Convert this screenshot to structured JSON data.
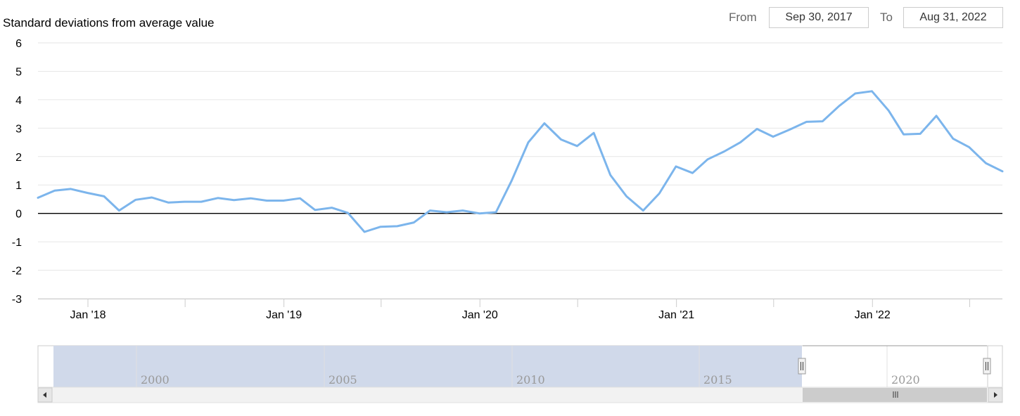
{
  "range_selector": {
    "from_label": "From",
    "from_value": "Sep 30, 2017",
    "to_label": "To",
    "to_value": "Aug 31, 2022"
  },
  "navigator": {
    "labels": [
      "2000",
      "2005",
      "2010",
      "2015",
      "2020"
    ]
  },
  "colors": {
    "series": "#7cb5ec",
    "navigator_fill": "#d0d9ea",
    "zero_line": "#000000",
    "grid": "#e6e6e6"
  },
  "chart_data": {
    "type": "line",
    "title": "",
    "ylabel": "Standard deviations from average value",
    "ylim": [
      -3,
      6
    ],
    "yticks": [
      6,
      5,
      4,
      3,
      2,
      1,
      0,
      -1,
      -2,
      -3
    ],
    "xlim": [
      "2017-09-30",
      "2022-08-31"
    ],
    "x_tick_labels": [
      {
        "date": "2018-01-01",
        "label": "Jan '18"
      },
      {
        "date": "2019-01-01",
        "label": "Jan '19"
      },
      {
        "date": "2020-01-01",
        "label": "Jan '20"
      },
      {
        "date": "2021-01-01",
        "label": "Jan '21"
      },
      {
        "date": "2022-01-01",
        "label": "Jan '22"
      }
    ],
    "x_minor_ticks": [
      "2018-07-01",
      "2019-07-01",
      "2020-07-01",
      "2021-07-01",
      "2022-07-01"
    ],
    "grid": true,
    "series": [
      {
        "x": [
          "2017-09-30",
          "2017-10-31",
          "2017-11-30",
          "2017-12-31",
          "2018-01-31",
          "2018-02-28",
          "2018-03-31",
          "2018-04-30",
          "2018-05-31",
          "2018-06-30",
          "2018-07-31",
          "2018-08-31",
          "2018-09-30",
          "2018-10-31",
          "2018-11-30",
          "2018-12-31",
          "2019-01-31",
          "2019-02-28",
          "2019-03-31",
          "2019-04-30",
          "2019-05-31",
          "2019-06-30",
          "2019-07-31",
          "2019-08-31",
          "2019-09-30",
          "2019-10-31",
          "2019-11-30",
          "2019-12-31",
          "2020-01-31",
          "2020-02-29",
          "2020-03-31",
          "2020-04-30",
          "2020-05-31",
          "2020-06-30",
          "2020-07-31",
          "2020-08-31",
          "2020-09-30",
          "2020-10-31",
          "2020-11-30",
          "2020-12-31",
          "2021-01-31",
          "2021-02-28",
          "2021-03-31",
          "2021-04-30",
          "2021-05-31",
          "2021-06-30",
          "2021-07-31",
          "2021-08-31",
          "2021-09-30",
          "2021-10-31",
          "2021-11-30",
          "2021-12-31",
          "2022-01-31",
          "2022-02-28",
          "2022-03-31",
          "2022-04-30",
          "2022-05-31",
          "2022-06-30",
          "2022-07-31",
          "2022-08-31"
        ],
        "values": [
          0.55,
          0.8,
          0.86,
          0.72,
          0.6,
          0.1,
          0.48,
          0.56,
          0.38,
          0.41,
          0.41,
          0.54,
          0.47,
          0.53,
          0.45,
          0.45,
          0.53,
          0.12,
          0.2,
          0.02,
          -0.65,
          -0.47,
          -0.45,
          -0.32,
          0.1,
          0.04,
          0.1,
          0.0,
          0.04,
          1.15,
          2.5,
          3.17,
          2.6,
          2.37,
          2.83,
          1.35,
          0.6,
          0.1,
          0.7,
          1.65,
          1.42,
          1.9,
          2.18,
          2.5,
          2.97,
          2.7,
          2.95,
          3.22,
          3.24,
          3.78,
          4.22,
          4.3,
          3.62,
          2.78,
          2.8,
          3.43,
          2.63,
          2.33,
          1.77,
          1.48
        ]
      }
    ]
  }
}
